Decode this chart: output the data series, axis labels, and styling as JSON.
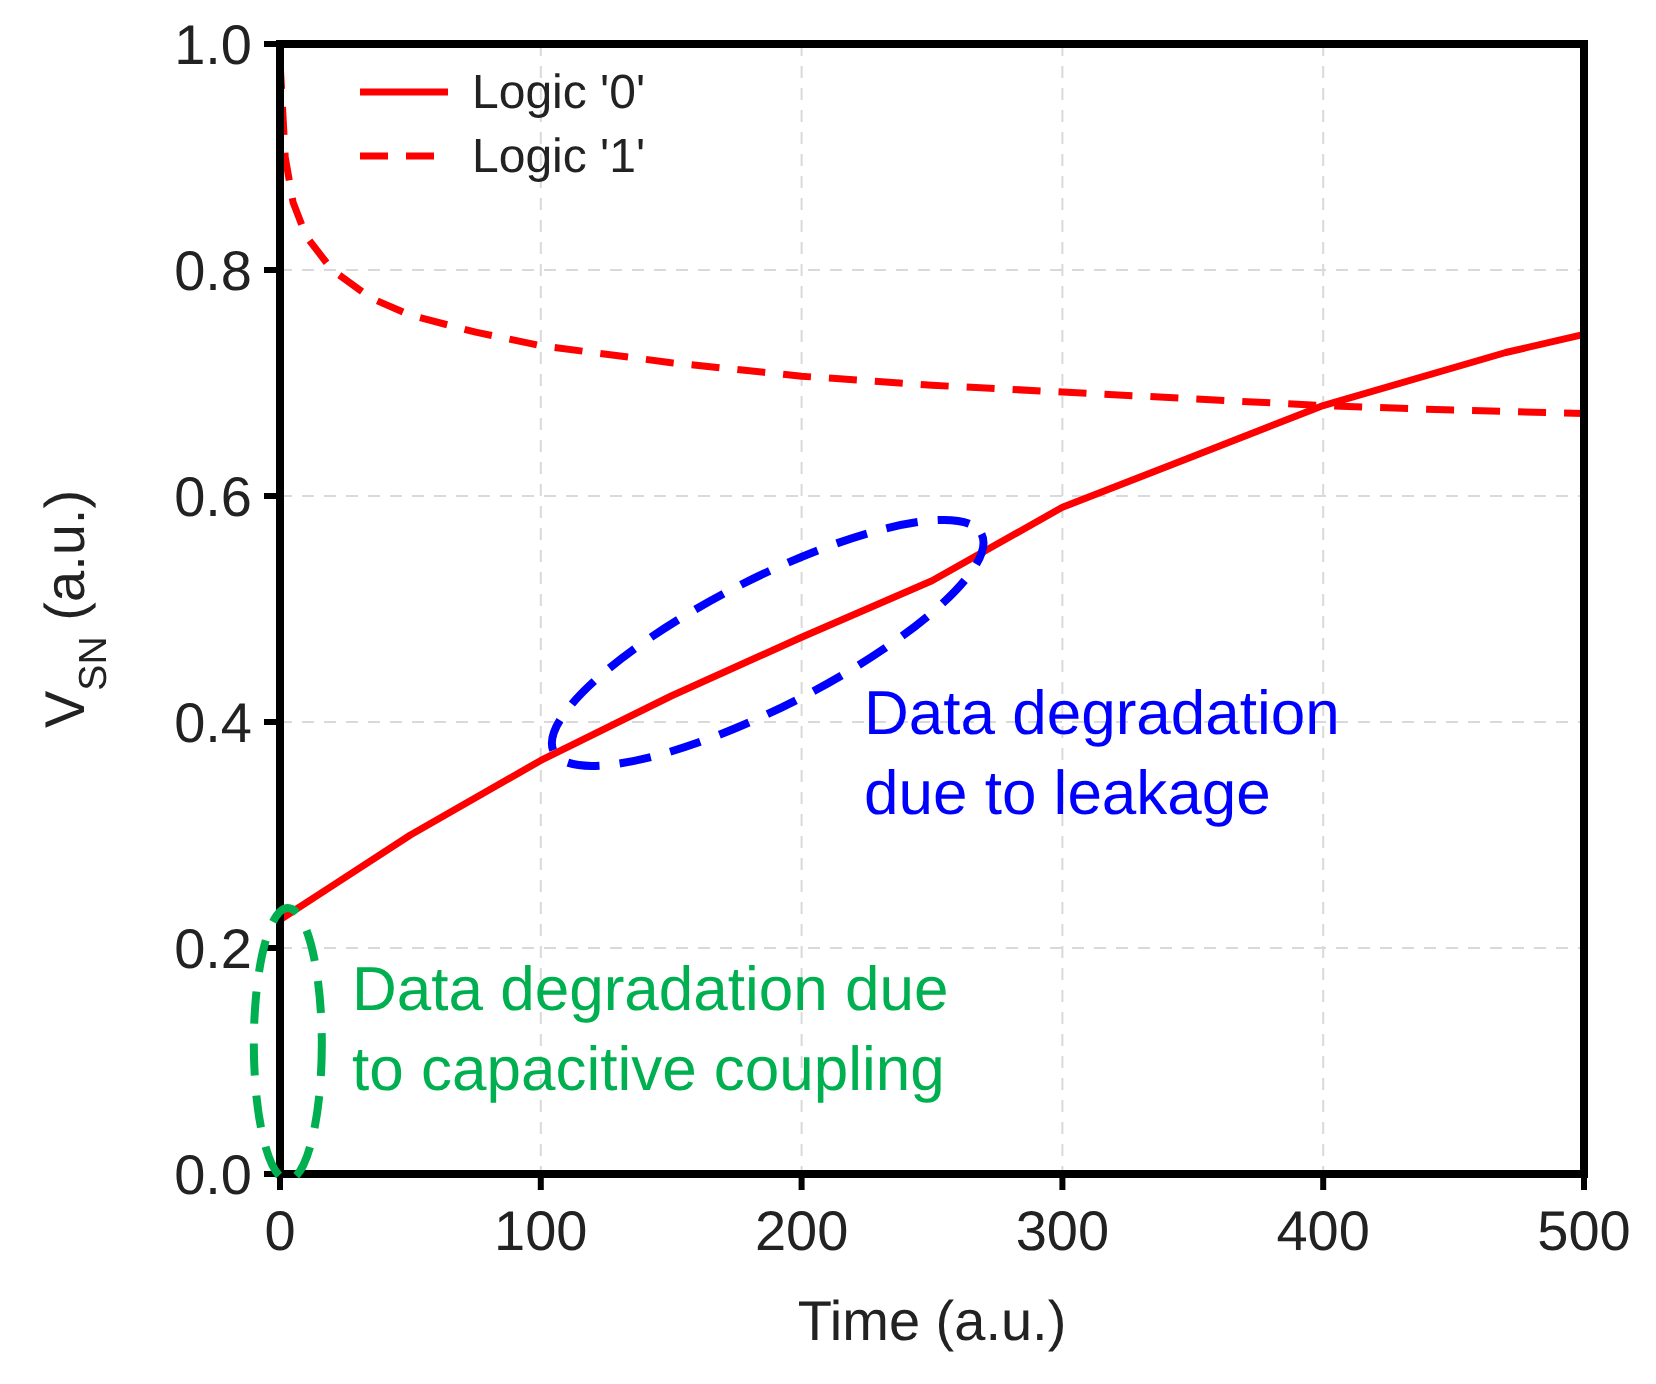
{
  "chart_data": {
    "type": "line",
    "xlabel": "Time (a.u.)",
    "ylabel": "V$_{SN}$ (a.u.)",
    "xlim": [
      0,
      500
    ],
    "xticks": [
      0,
      100,
      200,
      300,
      400,
      500
    ],
    "ylim": [
      0,
      1
    ],
    "yticks": [
      {
        "value": 0,
        "label": "0.0"
      },
      {
        "value": 0.2,
        "label": "0.2"
      },
      {
        "value": 0.4,
        "label": "0.4"
      },
      {
        "value": 0.6,
        "label": "0.6"
      },
      {
        "value": 0.8,
        "label": "0.8"
      },
      {
        "value": 1,
        "label": "1.0"
      }
    ],
    "grid": true,
    "legend": "top left",
    "marker": "none",
    "series": [
      {
        "name": "Logic '0'",
        "color": "#ff0000",
        "line_style": "solid",
        "x": [
          0,
          20,
          50,
          100,
          150,
          200,
          250,
          300,
          350,
          400,
          470,
          500
        ],
        "values": [
          0.225,
          0.255,
          0.3,
          0.366,
          0.423,
          0.475,
          0.525,
          0.59,
          0.635,
          0.68,
          0.727,
          0.743
        ]
      },
      {
        "name": "Logic '1'",
        "color": "#ff0000",
        "line_style": "dashed",
        "x": [
          0,
          2,
          5,
          10,
          20,
          35,
          50,
          75,
          100,
          150,
          200,
          250,
          300,
          350,
          400,
          450,
          500
        ],
        "values": [
          0.985,
          0.9,
          0.86,
          0.83,
          0.8,
          0.775,
          0.76,
          0.745,
          0.733,
          0.718,
          0.706,
          0.698,
          0.692,
          0.686,
          0.68,
          0.676,
          0.673
        ]
      }
    ],
    "annotations": [
      "Data degradation\ndue to leakage",
      "Data degradation due\nto capacitive coupling"
    ]
  }
}
